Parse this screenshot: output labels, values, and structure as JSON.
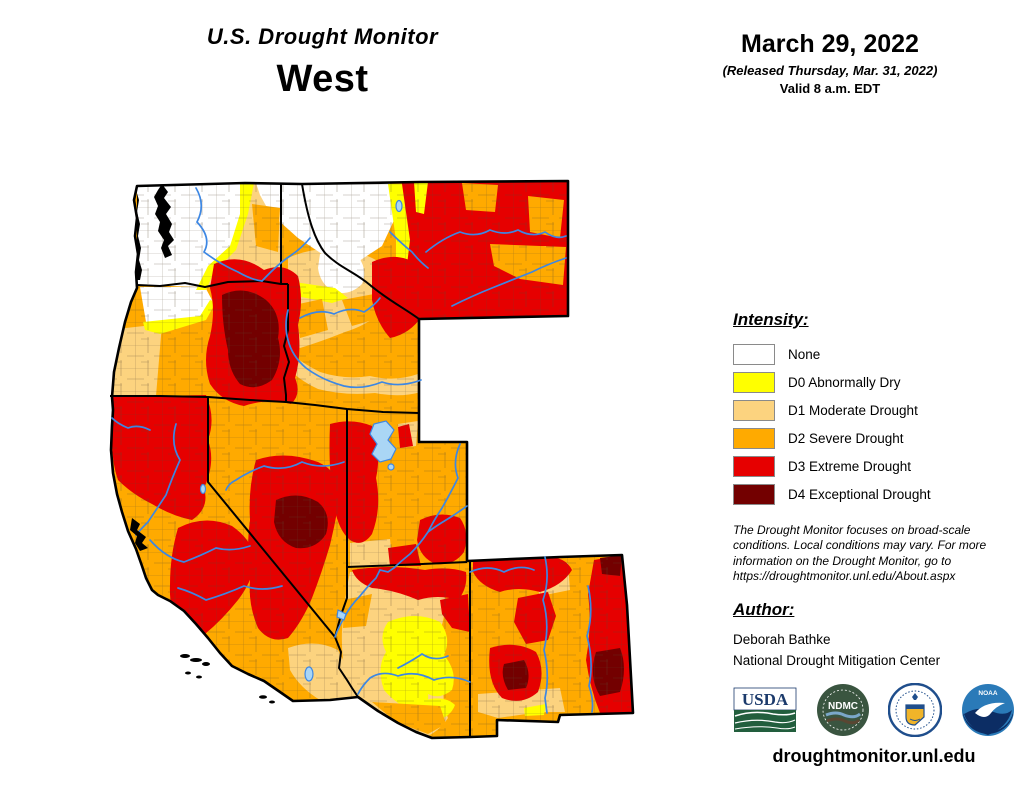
{
  "title": {
    "line1": "U.S. Drought Monitor",
    "line2": "West"
  },
  "date_block": {
    "date": "March 29, 2022",
    "released": "(Released Thursday, Mar. 31, 2022)",
    "valid": "Valid 8 a.m. EDT"
  },
  "legend": {
    "heading": "Intensity:",
    "items": [
      {
        "label": "None",
        "color": "#FFFFFF"
      },
      {
        "label": "D0 Abnormally Dry",
        "color": "#FFFF00"
      },
      {
        "label": "D1 Moderate Drought",
        "color": "#FCD37F"
      },
      {
        "label": "D2 Severe Drought",
        "color": "#FFAA00"
      },
      {
        "label": "D3 Extreme Drought",
        "color": "#E60000"
      },
      {
        "label": "D4 Exceptional Drought",
        "color": "#730000"
      }
    ]
  },
  "disclaimer": "The Drought Monitor focuses on broad-scale conditions. Local conditions may vary. For more information on the Drought Monitor, go to https://droughtmonitor.unl.edu/About.aspx",
  "author_block": {
    "heading": "Author:",
    "name": "Deborah Bathke",
    "org": "National Drought Mitigation Center"
  },
  "logos": {
    "usda": "USDA",
    "ndmc": "NDMC",
    "doc": "U.S. Department of Commerce",
    "noaa": "NOAA"
  },
  "footer": {
    "url": "droughtmonitor.unl.edu"
  },
  "map": {
    "region": "West",
    "river_color": "#3D87E3",
    "lake_color": "#AAD6F5",
    "states_shown": [
      "WA",
      "OR",
      "CA",
      "ID",
      "MT",
      "NV",
      "UT",
      "AZ",
      "NM"
    ]
  }
}
